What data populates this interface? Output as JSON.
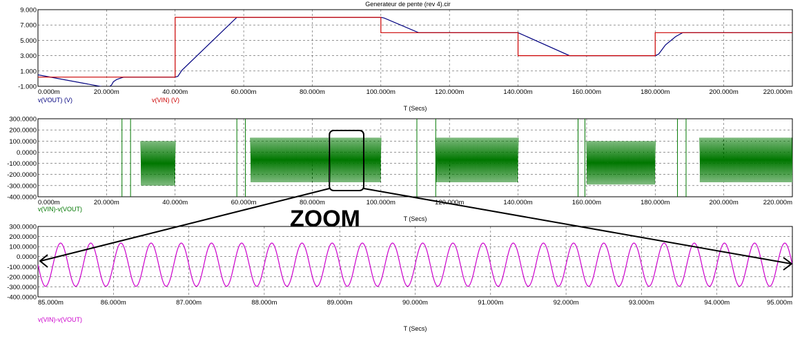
{
  "title": "Generateur de pente (rev 4).cir",
  "zoom_label": "ZOOM",
  "colors": {
    "vout": "#00007f",
    "vin": "#cc0000",
    "diff": "#007700",
    "zoom_trace": "#cc00cc",
    "grid": "#555555",
    "arrow": "#000000"
  },
  "chart_data": [
    {
      "type": "line",
      "id": "top",
      "xlabel": "T (Secs)",
      "xlim": [
        0,
        220
      ],
      "ylim": [
        -1,
        9
      ],
      "x_ticks": [
        "0.000m",
        "20.000m",
        "40.000m",
        "60.000m",
        "80.000m",
        "100.000m",
        "120.000m",
        "140.000m",
        "160.000m",
        "180.000m",
        "200.000m",
        "220.000m"
      ],
      "y_ticks": [
        "9.000",
        "7.000",
        "5.000",
        "3.000",
        "1.000",
        "-1.000"
      ],
      "grid": true,
      "series": [
        {
          "name": "v(VOUT) (V)",
          "color": "#00007f",
          "points": [
            [
              0,
              0.5
            ],
            [
              20.5,
              -1.2
            ],
            [
              21.5,
              -0.8
            ],
            [
              22,
              -0.4
            ],
            [
              23,
              -0.1
            ],
            [
              24,
              0.05
            ],
            [
              25,
              0.2
            ],
            [
              26,
              0.2
            ],
            [
              40,
              0.2
            ],
            [
              40.8,
              0.3
            ],
            [
              42,
              1.1
            ],
            [
              58,
              8
            ],
            [
              100,
              8
            ],
            [
              101,
              7.9
            ],
            [
              111,
              6
            ],
            [
              140,
              6
            ],
            [
              141,
              5.8
            ],
            [
              155,
              3
            ],
            [
              180,
              3
            ],
            [
              181,
              3.2
            ],
            [
              182,
              3.8
            ],
            [
              183,
              4.4
            ],
            [
              186,
              5.5
            ],
            [
              188,
              6
            ],
            [
              190,
              6
            ],
            [
              220,
              6
            ]
          ]
        },
        {
          "name": "v(VIN) (V)",
          "color": "#cc0000",
          "points": [
            [
              0,
              0.2
            ],
            [
              40,
              0.2
            ],
            [
              40,
              8
            ],
            [
              100,
              8
            ],
            [
              100,
              6
            ],
            [
              140,
              6
            ],
            [
              140,
              3
            ],
            [
              180,
              3
            ],
            [
              180,
              6
            ],
            [
              220,
              6
            ]
          ]
        }
      ]
    },
    {
      "type": "line",
      "id": "middle",
      "xlabel": "T (Secs)",
      "xlim": [
        0,
        220
      ],
      "ylim": [
        -400,
        300
      ],
      "x_ticks": [
        "0.000m",
        "20.000m",
        "40.000m",
        "60.000m",
        "80.000m",
        "100.000m",
        "120.000m",
        "140.000m",
        "160.000m",
        "180.000m",
        "200.000m",
        "220.000m"
      ],
      "y_ticks": [
        "300.0000",
        "200.0000",
        "100.0000",
        "0.0000",
        "-100.0000",
        "-200.0000",
        "-300.0000",
        "-400.0000"
      ],
      "grid": true,
      "series": [
        {
          "name": "v(VIN)-v(VOUT)",
          "color": "#007700",
          "spikes": [
            24.5,
            27,
            58,
            60.5,
            110.5,
            116,
            157.5,
            159.5,
            186.5,
            189
          ],
          "bursts": [
            {
              "x_start": 30,
              "x_end": 40,
              "high": 100,
              "low": -300
            },
            {
              "x_start": 62,
              "x_end": 100,
              "high": 130,
              "low": -270
            },
            {
              "x_start": 116,
              "x_end": 140,
              "high": 130,
              "low": -270
            },
            {
              "x_start": 160,
              "x_end": 180,
              "high": 100,
              "low": -290
            },
            {
              "x_start": 193,
              "x_end": 220,
              "high": 130,
              "low": -270
            }
          ]
        }
      ]
    },
    {
      "type": "line",
      "id": "bottom",
      "xlabel": "T (Secs)",
      "xlim": [
        85,
        95
      ],
      "ylim": [
        -400,
        300
      ],
      "x_ticks": [
        "85.000m",
        "86.000m",
        "87.000m",
        "88.000m",
        "89.000m",
        "90.000m",
        "91.000m",
        "92.000m",
        "93.000m",
        "94.000m",
        "95.000m"
      ],
      "y_ticks": [
        "300.0000",
        "200.0000",
        "100.0000",
        "0.0000",
        "-100.0000",
        "-200.0000",
        "-300.0000",
        "-400.0000"
      ],
      "grid": true,
      "series": [
        {
          "name": "v(VIN)-v(VOUT)",
          "color": "#cc00cc",
          "waveform": "sine",
          "period": 0.4,
          "high": 135,
          "low": -295,
          "first_peak": 85.3
        }
      ]
    }
  ]
}
